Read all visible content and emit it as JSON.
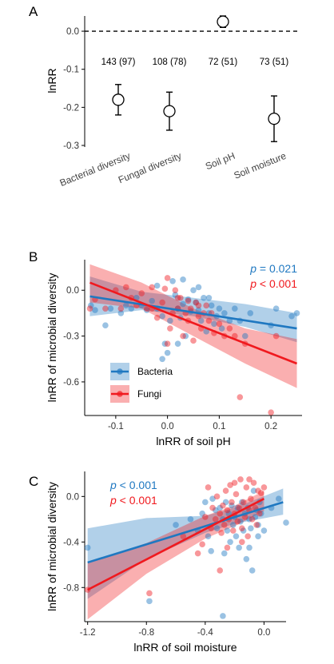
{
  "chart_data": [
    {
      "panel": "A",
      "type": "scatter",
      "ylabel": "lnRR",
      "ylim": [
        -0.3,
        0.04
      ],
      "yticks": [
        0.0,
        -0.1,
        -0.2,
        -0.3
      ],
      "ytick_labels": [
        "0.0",
        "-0.1",
        "-0.2",
        "-0.3"
      ],
      "reference_line": 0,
      "categories": [
        "Bacterial diversity",
        "Fungal diversity",
        "Soil pH",
        "Soil moisture"
      ],
      "counts": [
        "143 (97)",
        "108 (78)",
        "72 (51)",
        "73 (51)"
      ],
      "values": [
        -0.18,
        -0.21,
        0.025,
        -0.23
      ],
      "ci_low": [
        -0.22,
        -0.26,
        0.01,
        -0.29
      ],
      "ci_high": [
        -0.14,
        -0.16,
        0.04,
        -0.17
      ]
    },
    {
      "panel": "B",
      "type": "scatter",
      "xlabel": "lnRR of soil pH",
      "ylabel": "lnRR of microbial diversity",
      "xlim": [
        -0.16,
        0.26
      ],
      "ylim": [
        -0.82,
        0.2
      ],
      "xticks": [
        -0.1,
        0.0,
        0.1,
        0.2
      ],
      "xtick_labels": [
        "-0.1",
        "0.0",
        "0.1",
        "0.2"
      ],
      "yticks": [
        0.0,
        -0.3,
        -0.6
      ],
      "ytick_labels": [
        "0.0",
        "-0.3",
        "-0.6"
      ],
      "legend": [
        {
          "label": "Bacteria",
          "color": "#1f78c1"
        },
        {
          "label": "Fungi",
          "color": "#f0191e"
        }
      ],
      "annotations": [
        {
          "italic": "p",
          "rest": " = 0.021",
          "color": "#1f78c1"
        },
        {
          "italic": "p",
          "rest": " < 0.001",
          "color": "#f0191e"
        }
      ],
      "series": [
        {
          "name": "Bacteria",
          "color": "#1f78c1",
          "fit": {
            "x": [
              -0.15,
              0.25
            ],
            "y": [
              -0.04,
              -0.25
            ]
          },
          "band": {
            "x": [
              -0.15,
              -0.05,
              0.05,
              0.15,
              0.25
            ],
            "lower": [
              -0.17,
              -0.13,
              -0.17,
              -0.24,
              -0.34
            ],
            "upper": [
              0.09,
              -0.01,
              -0.05,
              -0.09,
              -0.15
            ]
          },
          "points": [
            [
              -0.148,
              -0.1
            ],
            [
              -0.14,
              -0.13
            ],
            [
              -0.12,
              -0.23
            ],
            [
              -0.11,
              -0.12
            ],
            [
              -0.09,
              -0.15
            ],
            [
              -0.08,
              -0.1
            ],
            [
              -0.07,
              -0.12
            ],
            [
              -0.06,
              -0.05
            ],
            [
              -0.05,
              -0.1
            ],
            [
              -0.04,
              -0.13
            ],
            [
              -0.03,
              -0.07
            ],
            [
              -0.02,
              -0.12
            ],
            [
              -0.01,
              -0.17
            ],
            [
              -0.005,
              -0.35
            ],
            [
              0.0,
              -0.41
            ],
            [
              0.005,
              -0.2
            ],
            [
              0.01,
              0.06
            ],
            [
              0.015,
              -0.03
            ],
            [
              0.02,
              -0.12
            ],
            [
              0.025,
              -0.18
            ],
            [
              0.03,
              -0.09
            ],
            [
              0.035,
              -0.3
            ],
            [
              0.04,
              -0.06
            ],
            [
              0.045,
              -0.14
            ],
            [
              0.05,
              0.0
            ],
            [
              0.055,
              -0.08
            ],
            [
              0.06,
              -0.13
            ],
            [
              0.065,
              -0.2
            ],
            [
              0.07,
              -0.05
            ],
            [
              0.075,
              -0.27
            ],
            [
              0.08,
              -0.15
            ],
            [
              0.085,
              -0.1
            ],
            [
              0.09,
              -0.22
            ],
            [
              0.095,
              -0.17
            ],
            [
              0.1,
              -0.12
            ],
            [
              0.105,
              -0.25
            ],
            [
              0.11,
              -0.15
            ],
            [
              0.12,
              -0.2
            ],
            [
              0.13,
              -0.12
            ],
            [
              0.14,
              -0.2
            ],
            [
              0.15,
              -0.3
            ],
            [
              0.16,
              -0.15
            ],
            [
              0.2,
              -0.23
            ],
            [
              0.21,
              -0.12
            ],
            [
              0.24,
              -0.17
            ],
            [
              0.25,
              -0.15
            ],
            [
              0.03,
              0.07
            ],
            [
              -0.02,
              0.03
            ],
            [
              0.06,
              0.02
            ],
            [
              0.02,
              -0.35
            ],
            [
              -0.01,
              -0.45
            ],
            [
              0.08,
              -0.05
            ]
          ]
        },
        {
          "name": "Fungi",
          "color": "#f0191e",
          "fit": {
            "x": [
              -0.15,
              0.25
            ],
            "y": [
              0.05,
              -0.48
            ]
          },
          "band": {
            "x": [
              -0.15,
              -0.05,
              0.05,
              0.15,
              0.25
            ],
            "lower": [
              -0.08,
              -0.12,
              -0.3,
              -0.48,
              -0.64
            ],
            "upper": [
              0.17,
              0.05,
              -0.12,
              -0.25,
              -0.32
            ]
          },
          "points": [
            [
              -0.14,
              -0.06
            ],
            [
              -0.12,
              -0.12
            ],
            [
              -0.1,
              0.0
            ],
            [
              -0.09,
              -0.12
            ],
            [
              -0.08,
              0.02
            ],
            [
              -0.07,
              -0.05
            ],
            [
              -0.06,
              -0.1
            ],
            [
              -0.05,
              -0.02
            ],
            [
              -0.04,
              -0.12
            ],
            [
              -0.03,
              -0.12
            ],
            [
              -0.02,
              -0.18
            ],
            [
              -0.01,
              -0.08
            ],
            [
              0.0,
              0.08
            ],
            [
              0.0,
              -0.35
            ],
            [
              0.005,
              -0.25
            ],
            [
              0.01,
              -0.15
            ],
            [
              0.015,
              0.0
            ],
            [
              0.02,
              -0.12
            ],
            [
              0.025,
              -0.05
            ],
            [
              0.03,
              -0.3
            ],
            [
              0.035,
              -0.15
            ],
            [
              0.04,
              -0.2
            ],
            [
              0.045,
              -0.12
            ],
            [
              0.05,
              -0.33
            ],
            [
              0.055,
              -0.08
            ],
            [
              0.06,
              -0.17
            ],
            [
              0.065,
              -0.25
            ],
            [
              0.07,
              -0.15
            ],
            [
              0.075,
              -0.1
            ],
            [
              0.08,
              -0.2
            ],
            [
              0.085,
              -0.15
            ],
            [
              0.09,
              -0.28
            ],
            [
              0.1,
              -0.22
            ],
            [
              0.11,
              -0.3
            ],
            [
              0.12,
              -0.25
            ],
            [
              0.13,
              -0.3
            ],
            [
              0.14,
              -0.7
            ],
            [
              0.15,
              -0.35
            ],
            [
              0.2,
              -0.8
            ],
            [
              0.21,
              -0.3
            ],
            [
              -0.15,
              -0.12
            ],
            [
              -0.005,
              0.01
            ],
            [
              0.02,
              -0.05
            ],
            [
              -0.03,
              0.02
            ],
            [
              0.04,
              -0.07
            ],
            [
              0.06,
              -0.1
            ]
          ]
        }
      ]
    },
    {
      "panel": "C",
      "type": "scatter",
      "xlabel": "lnRR of soil moisture",
      "ylabel": "lnRR of microbial diversity",
      "xlim": [
        -1.22,
        0.15
      ],
      "ylim": [
        -1.1,
        0.22
      ],
      "xticks": [
        -1.2,
        -0.8,
        -0.4,
        0.0
      ],
      "xtick_labels": [
        "-1.2",
        "-0.8",
        "-0.4",
        "0.0"
      ],
      "yticks": [
        0.0,
        -0.4,
        -0.8
      ],
      "ytick_labels": [
        "0.0",
        "-0.4",
        "-0.8"
      ],
      "annotations": [
        {
          "italic": "p",
          "rest": " < 0.001",
          "color": "#1f78c1"
        },
        {
          "italic": "p",
          "rest": " < 0.001",
          "color": "#f0191e"
        }
      ],
      "series": [
        {
          "name": "Bacteria",
          "color": "#1f78c1",
          "fit": {
            "x": [
              -1.2,
              0.13
            ],
            "y": [
              -0.58,
              -0.05
            ]
          },
          "band": {
            "x": [
              -1.2,
              -0.8,
              -0.4,
              -0.2,
              0.13
            ],
            "lower": [
              -0.9,
              -0.55,
              -0.32,
              -0.24,
              -0.16
            ],
            "upper": [
              -0.28,
              -0.19,
              -0.17,
              -0.1,
              0.07
            ]
          },
          "points": [
            [
              -1.2,
              -0.45
            ],
            [
              -0.78,
              -0.92
            ],
            [
              -0.6,
              -0.25
            ],
            [
              -0.5,
              -0.2
            ],
            [
              -0.45,
              -0.3
            ],
            [
              -0.42,
              -0.15
            ],
            [
              -0.4,
              -0.05
            ],
            [
              -0.38,
              -0.35
            ],
            [
              -0.36,
              -0.48
            ],
            [
              -0.35,
              -0.02
            ],
            [
              -0.33,
              -0.12
            ],
            [
              -0.32,
              -0.28
            ],
            [
              -0.3,
              -0.1
            ],
            [
              -0.28,
              -0.2
            ],
            [
              -0.27,
              -0.5
            ],
            [
              -0.26,
              -0.05
            ],
            [
              -0.25,
              -0.3
            ],
            [
              -0.24,
              -0.15
            ],
            [
              -0.23,
              -0.4
            ],
            [
              -0.22,
              -0.08
            ],
            [
              -0.21,
              -0.25
            ],
            [
              -0.2,
              -0.18
            ],
            [
              -0.19,
              -0.35
            ],
            [
              -0.18,
              -0.1
            ],
            [
              -0.17,
              -0.45
            ],
            [
              -0.16,
              -0.22
            ],
            [
              -0.15,
              -0.05
            ],
            [
              -0.14,
              -0.3
            ],
            [
              -0.13,
              -0.15
            ],
            [
              -0.12,
              -0.55
            ],
            [
              -0.11,
              -0.1
            ],
            [
              -0.1,
              -0.2
            ],
            [
              -0.09,
              -0.28
            ],
            [
              -0.08,
              -0.65
            ],
            [
              -0.07,
              0.05
            ],
            [
              -0.06,
              -0.18
            ],
            [
              -0.05,
              -0.12
            ],
            [
              -0.04,
              -0.25
            ],
            [
              -0.03,
              -0.05
            ],
            [
              -0.02,
              -0.15
            ],
            [
              0.0,
              -0.3
            ],
            [
              0.05,
              -0.1
            ],
            [
              0.1,
              -0.02
            ],
            [
              0.15,
              -0.23
            ],
            [
              -0.28,
              -1.05
            ],
            [
              -0.1,
              -0.45
            ],
            [
              -0.04,
              -0.35
            ]
          ]
        },
        {
          "name": "Fungi",
          "color": "#f0191e",
          "fit": {
            "x": [
              -1.2,
              0.0
            ],
            "y": [
              -0.82,
              -0.02
            ]
          },
          "band": {
            "x": [
              -1.2,
              -0.8,
              -0.4,
              -0.2,
              0.0
            ],
            "lower": [
              -1.08,
              -0.68,
              -0.37,
              -0.26,
              -0.13
            ],
            "upper": [
              -0.58,
              -0.41,
              -0.17,
              -0.08,
              0.05
            ]
          },
          "points": [
            [
              -1.2,
              -0.82
            ],
            [
              -0.78,
              -0.85
            ],
            [
              -0.55,
              -0.35
            ],
            [
              -0.42,
              -0.42
            ],
            [
              -0.4,
              -0.18
            ],
            [
              -0.38,
              0.08
            ],
            [
              -0.36,
              -0.28
            ],
            [
              -0.35,
              -0.1
            ],
            [
              -0.33,
              -0.2
            ],
            [
              -0.32,
              0.0
            ],
            [
              -0.3,
              -0.15
            ],
            [
              -0.29,
              -0.32
            ],
            [
              -0.28,
              -0.08
            ],
            [
              -0.27,
              -0.25
            ],
            [
              -0.26,
              0.05
            ],
            [
              -0.25,
              -0.12
            ],
            [
              -0.24,
              -0.2
            ],
            [
              -0.23,
              0.1
            ],
            [
              -0.22,
              -0.05
            ],
            [
              -0.21,
              -0.3
            ],
            [
              -0.2,
              -0.15
            ],
            [
              -0.19,
              0.02
            ],
            [
              -0.18,
              -0.22
            ],
            [
              -0.17,
              -0.1
            ],
            [
              -0.16,
              0.15
            ],
            [
              -0.15,
              -0.28
            ],
            [
              -0.14,
              -0.05
            ],
            [
              -0.13,
              -0.18
            ],
            [
              -0.12,
              0.08
            ],
            [
              -0.11,
              -0.35
            ],
            [
              -0.1,
              -0.12
            ],
            [
              -0.09,
              -0.02
            ],
            [
              -0.08,
              -0.2
            ],
            [
              -0.07,
              0.12
            ],
            [
              -0.06,
              -0.1
            ],
            [
              -0.05,
              -0.25
            ],
            [
              -0.04,
              0.05
            ],
            [
              -0.03,
              -0.15
            ],
            [
              -0.02,
              0.03
            ],
            [
              0.0,
              0.08
            ],
            [
              -0.3,
              -0.65
            ],
            [
              -0.45,
              -0.5
            ],
            [
              -0.15,
              -0.4
            ],
            [
              -0.2,
              0.12
            ],
            [
              -0.1,
              0.15
            ],
            [
              -0.25,
              -0.45
            ]
          ]
        }
      ]
    }
  ]
}
